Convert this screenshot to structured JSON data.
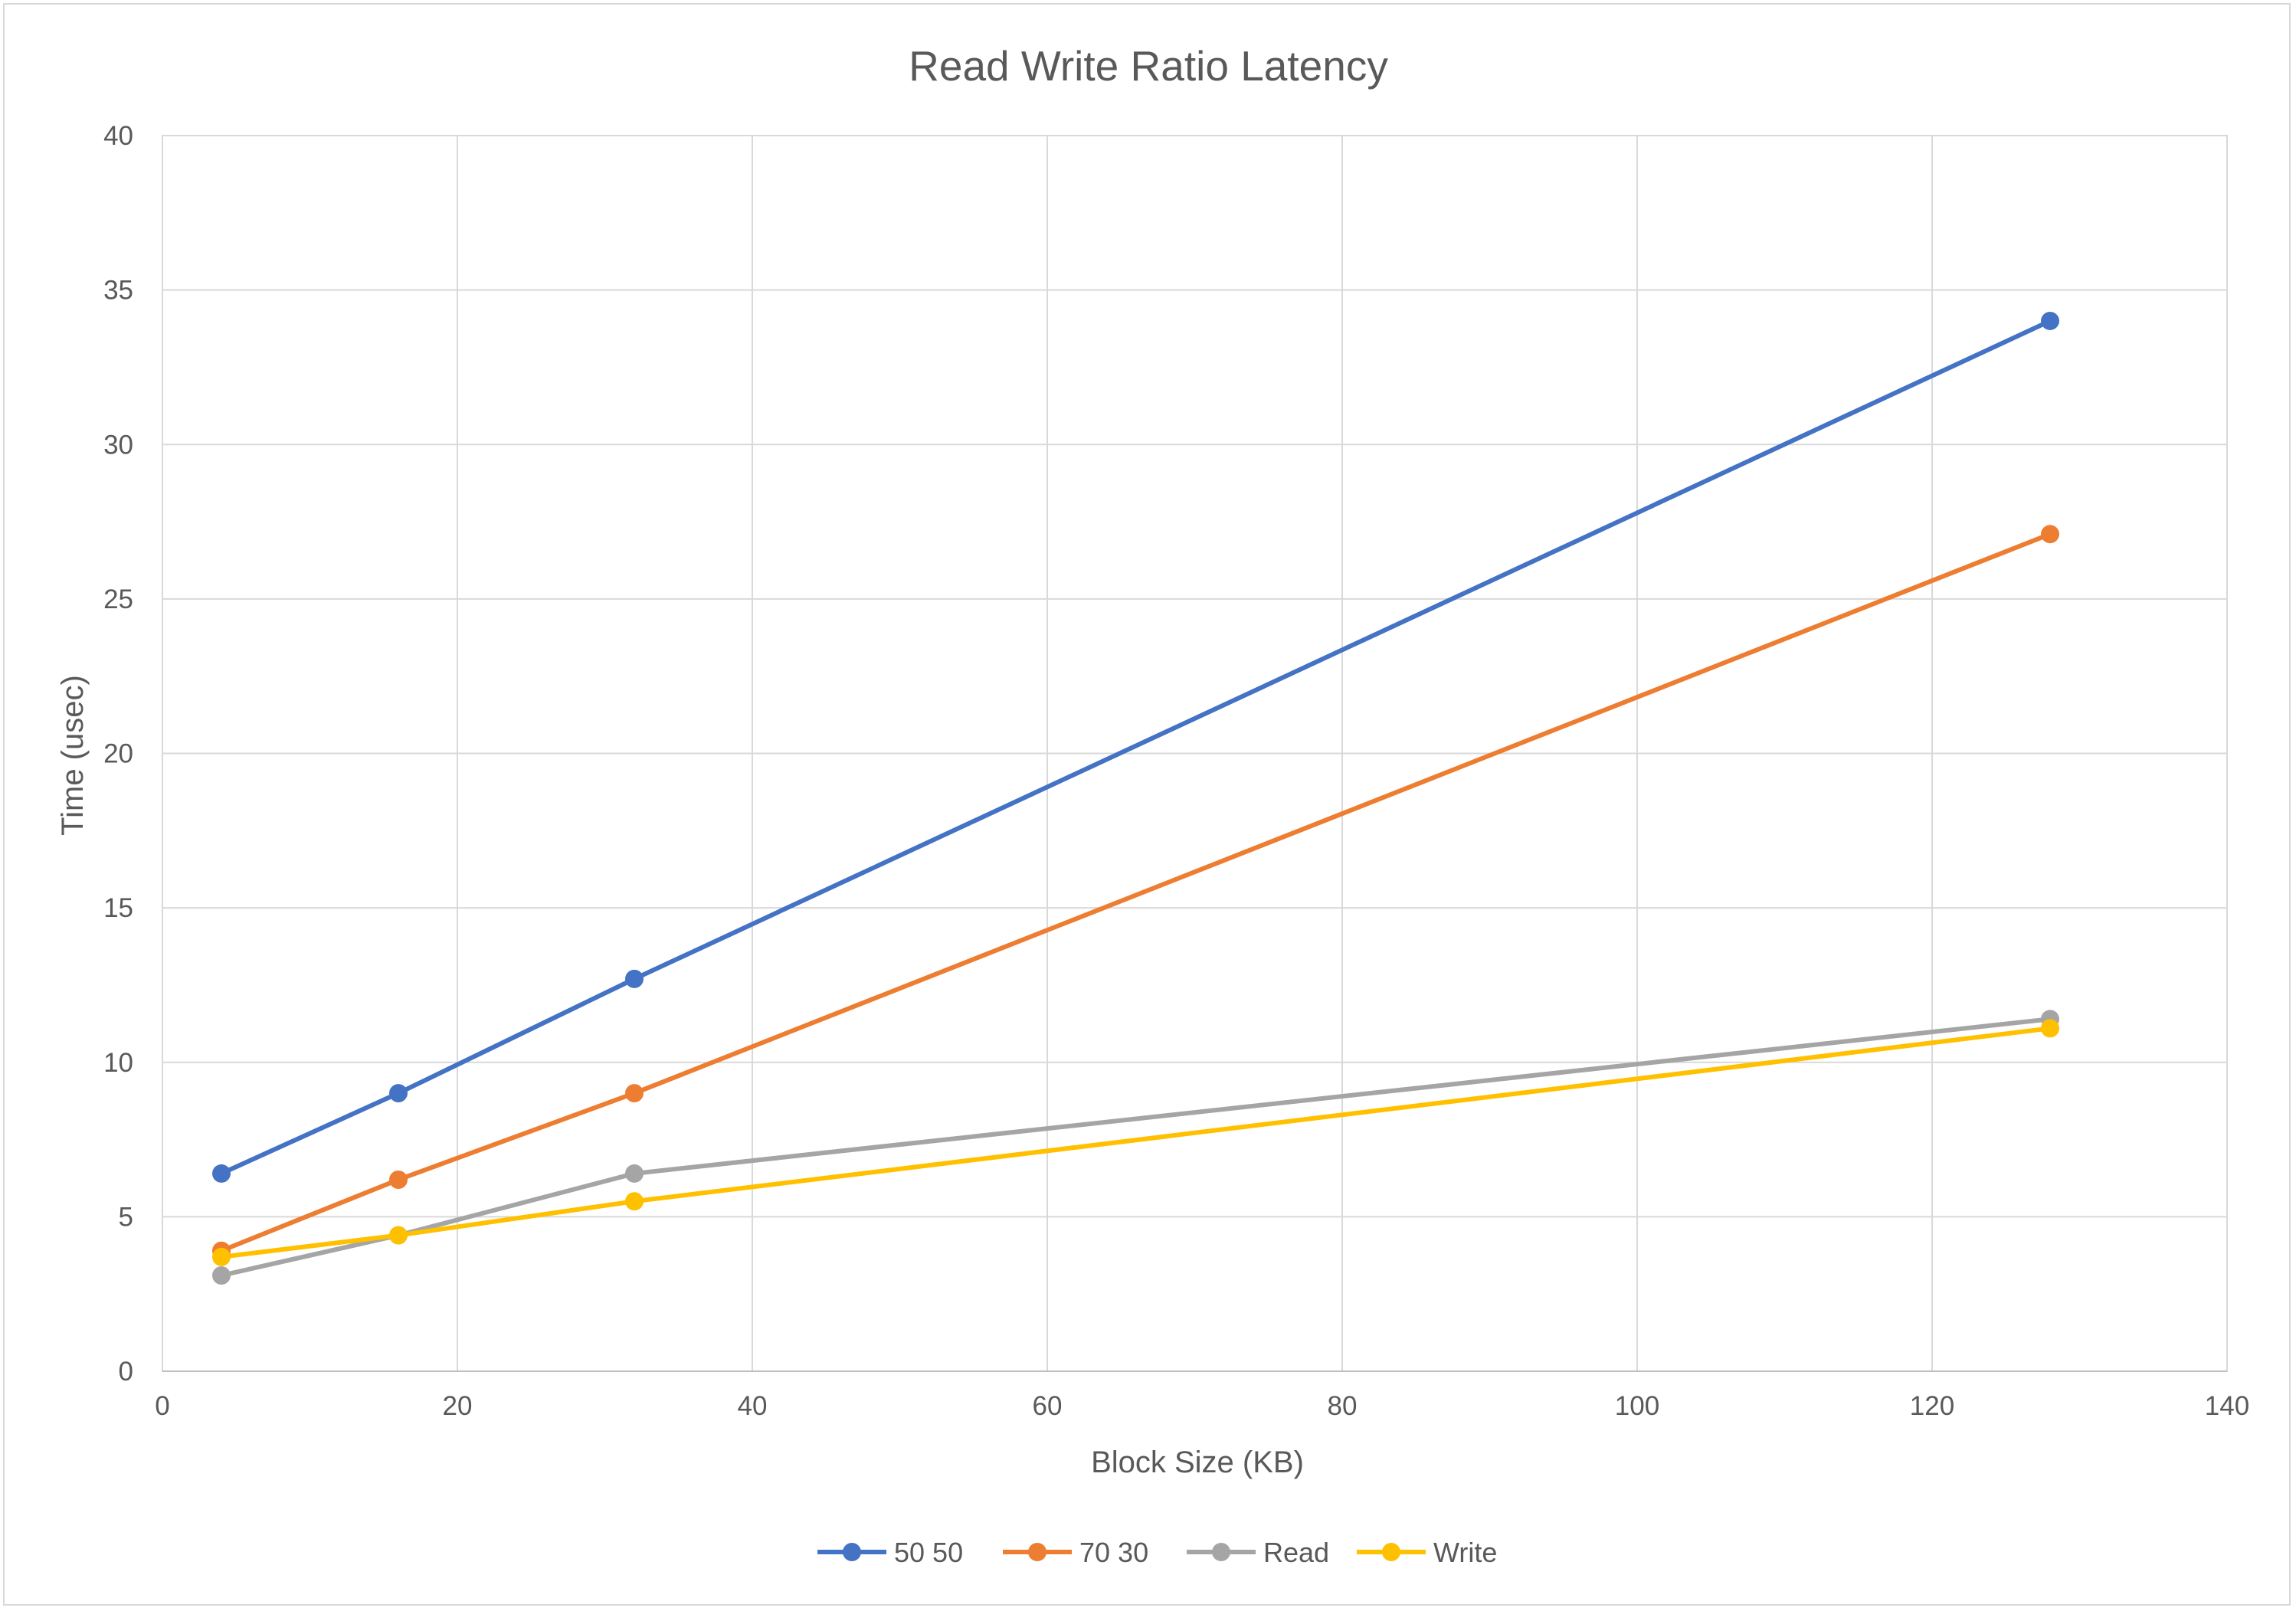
{
  "chart_data": {
    "type": "scatter",
    "title": "Read Write Ratio Latency",
    "xlabel": "Block Size (KB)",
    "ylabel": "Time (usec)",
    "xlim": [
      0,
      140
    ],
    "ylim": [
      0,
      40
    ],
    "x_ticks": [
      0,
      20,
      40,
      60,
      80,
      100,
      120,
      140
    ],
    "y_ticks": [
      0,
      5,
      10,
      15,
      20,
      25,
      30,
      35,
      40
    ],
    "grid": true,
    "lines_with_markers": true,
    "legend_position": "bottom",
    "x": [
      4,
      16,
      32,
      128
    ],
    "series": [
      {
        "name": "50 50",
        "color": "#4472c4",
        "values": [
          6.4,
          9.0,
          12.7,
          34.0
        ]
      },
      {
        "name": "70 30",
        "color": "#ed7d31",
        "values": [
          3.9,
          6.2,
          9.0,
          27.1
        ]
      },
      {
        "name": "Read",
        "color": "#a5a5a5",
        "values": [
          3.1,
          4.4,
          6.4,
          11.4
        ]
      },
      {
        "name": "Write",
        "color": "#ffc000",
        "values": [
          3.7,
          4.4,
          5.5,
          11.1
        ]
      }
    ]
  }
}
